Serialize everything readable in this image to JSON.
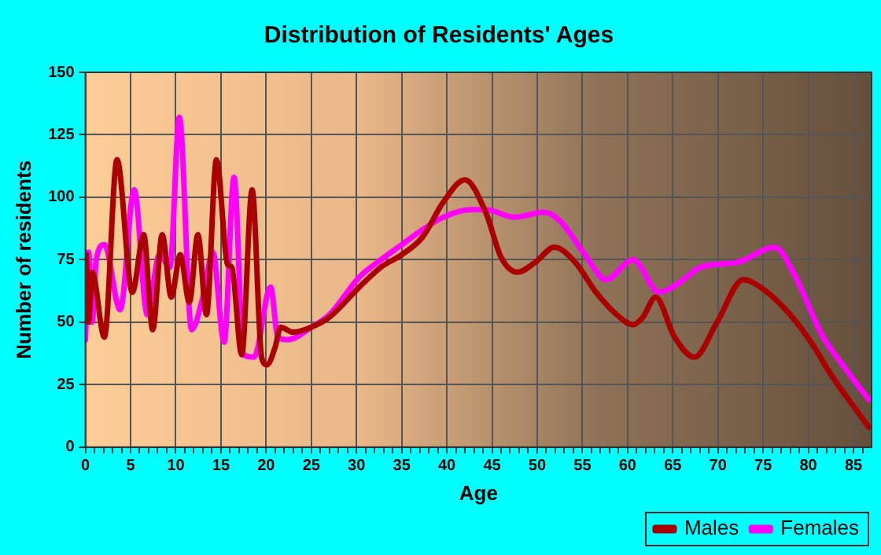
{
  "chart_data": {
    "type": "line",
    "title": "Distribution of Residents' Ages",
    "xlabel": "Age",
    "ylabel": "Number of residents",
    "xlim": [
      0,
      87
    ],
    "ylim": [
      0,
      150
    ],
    "xticks": [
      0,
      {
        "value": 1,
        "label": null
      },
      {
        "value": 2,
        "label": null
      },
      {
        "value": 3,
        "label": null
      },
      {
        "value": 4,
        "label": null
      },
      5,
      {
        "value": 6,
        "label": null
      },
      {
        "value": 7,
        "label": null
      },
      {
        "value": 8,
        "label": null
      },
      {
        "value": 9,
        "label": null
      },
      10,
      {
        "value": 11,
        "label": null
      },
      {
        "value": 12,
        "label": null
      },
      {
        "value": 13,
        "label": null
      },
      {
        "value": 14,
        "label": null
      },
      15,
      {
        "value": 16,
        "label": null
      },
      {
        "value": 17,
        "label": null
      },
      {
        "value": 18,
        "label": null
      },
      {
        "value": 19,
        "label": null
      },
      20,
      {
        "value": 21,
        "label": null
      },
      {
        "value": 22,
        "label": null
      },
      {
        "value": 23,
        "label": null
      },
      {
        "value": 24,
        "label": null
      },
      25,
      {
        "value": 26,
        "label": null
      },
      {
        "value": 27,
        "label": null
      },
      {
        "value": 28,
        "label": null
      },
      {
        "value": 29,
        "label": null
      },
      30,
      {
        "value": 31,
        "label": null
      },
      {
        "value": 32,
        "label": null
      },
      {
        "value": 33,
        "label": null
      },
      {
        "value": 34,
        "label": null
      },
      35,
      {
        "value": 36,
        "label": null
      },
      {
        "value": 37,
        "label": null
      },
      {
        "value": 38,
        "label": null
      },
      {
        "value": 39,
        "label": null
      },
      40,
      {
        "value": 41,
        "label": null
      },
      {
        "value": 42,
        "label": null
      },
      {
        "value": 43,
        "label": null
      },
      {
        "value": 44,
        "label": null
      },
      45,
      {
        "value": 46,
        "label": null
      },
      {
        "value": 47,
        "label": null
      },
      {
        "value": 48,
        "label": null
      },
      {
        "value": 49,
        "label": null
      },
      50,
      {
        "value": 51,
        "label": null
      },
      {
        "value": 52,
        "label": null
      },
      {
        "value": 53,
        "label": null
      },
      {
        "value": 54,
        "label": null
      },
      55,
      {
        "value": 56,
        "label": null
      },
      {
        "value": 57,
        "label": null
      },
      {
        "value": 58,
        "label": null
      },
      {
        "value": 59,
        "label": null
      },
      60,
      {
        "value": 61,
        "label": null
      },
      {
        "value": 62,
        "label": null
      },
      {
        "value": 63,
        "label": null
      },
      {
        "value": 64,
        "label": null
      },
      65,
      {
        "value": 66,
        "label": null
      },
      {
        "value": 67,
        "label": null
      },
      {
        "value": 68,
        "label": null
      },
      {
        "value": 69,
        "label": null
      },
      70,
      {
        "value": 71,
        "label": null
      },
      {
        "value": 72,
        "label": null
      },
      {
        "value": 73,
        "label": null
      },
      {
        "value": 74,
        "label": null
      },
      75,
      {
        "value": 76,
        "label": null
      },
      {
        "value": 77,
        "label": null
      },
      {
        "value": 78,
        "label": null
      },
      {
        "value": 79,
        "label": null
      },
      80,
      {
        "value": 81,
        "label": null
      },
      {
        "value": 82,
        "label": null
      },
      {
        "value": 83,
        "label": null
      },
      {
        "value": 84,
        "label": null
      },
      85,
      {
        "value": 86,
        "label": null
      }
    ],
    "yticks": [
      0,
      25,
      50,
      75,
      100,
      125,
      150
    ],
    "grid": true,
    "legend": "bottom right",
    "marker": "none",
    "line_style": "solid",
    "series": [
      {
        "name": "Males",
        "color": "#aa0000",
        "x": [
          0.1,
          0.35,
          0.75,
          2.1,
          3.5,
          5.2,
          6.45,
          7.45,
          8.5,
          9.5,
          10.5,
          11.5,
          12.45,
          13.4,
          14.5,
          15.75,
          16.2,
          17.3,
          18.45,
          19.5,
          20.1,
          21,
          21.6,
          23,
          25,
          27,
          30.3,
          32.7,
          35,
          37.3,
          39.6,
          42,
          44.3,
          46,
          47.8,
          49.8,
          51.9,
          54.2,
          56.5,
          58.8,
          60.6,
          61.7,
          63.1,
          65.2,
          67.4,
          69.9,
          72.8,
          75.1,
          78,
          80.3,
          82.7,
          86.7
        ],
        "values": [
          77,
          50,
          70,
          44,
          115,
          62,
          85,
          47,
          85,
          60,
          77,
          58,
          85,
          53,
          115,
          73,
          72,
          37,
          103,
          36,
          33,
          40,
          48,
          46,
          48,
          52,
          64,
          72,
          77,
          84,
          98,
          107,
          94,
          76,
          70,
          74,
          80,
          74,
          62,
          53,
          49,
          52,
          60,
          44,
          36,
          50,
          67,
          63,
          53,
          42,
          28,
          8
        ]
      },
      {
        "name": "Females",
        "color": "#ff00ff",
        "x": [
          0,
          0.35,
          0.75,
          1.2,
          2.1,
          3.85,
          5.4,
          6.85,
          8.2,
          9.35,
          10.4,
          11.75,
          13,
          14.1,
          15.35,
          16.45,
          17.5,
          18.65,
          20.5,
          21.3,
          22.4,
          25,
          27,
          30.3,
          32.7,
          35,
          37.3,
          39.6,
          42.6,
          44.3,
          47.5,
          50.7,
          52.4,
          55.3,
          57.6,
          60.6,
          63.5,
          65.8,
          68.1,
          72.2,
          76.3,
          78.6,
          81.5,
          84.4,
          86.7
        ],
        "values": [
          43,
          78,
          50,
          75,
          81,
          55,
          103,
          53,
          77,
          72,
          132,
          47,
          60,
          78,
          42,
          108,
          37,
          36,
          64,
          44,
          43,
          48,
          53,
          68,
          75,
          81,
          87,
          92,
          95,
          95,
          92,
          94,
          91,
          77,
          67,
          75,
          62,
          66,
          72,
          74,
          80,
          68,
          45,
          30,
          19
        ]
      }
    ]
  }
}
